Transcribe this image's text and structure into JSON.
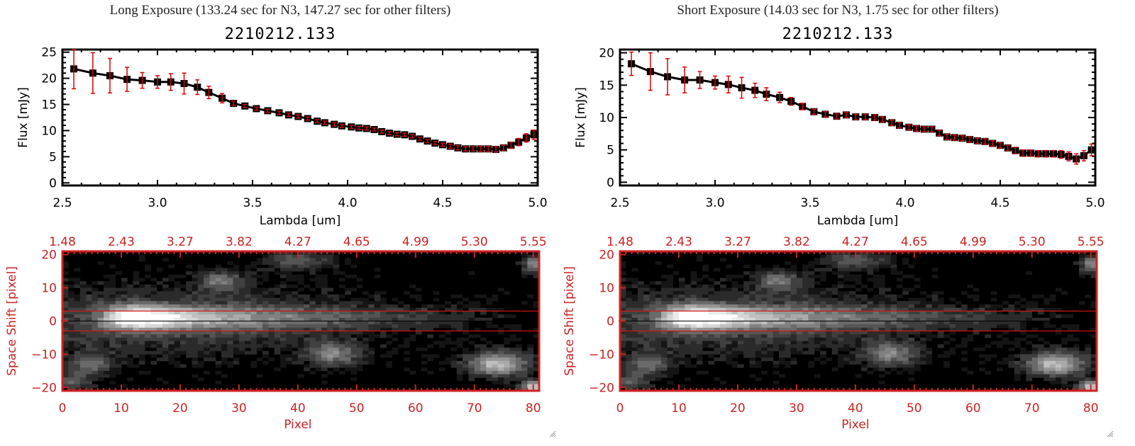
{
  "panels": [
    {
      "id": "long",
      "exposure_title": "Long Exposure (133.24 sec for N3, 147.27 sec for other filters)",
      "obs_id": "2210212.133"
    },
    {
      "id": "short",
      "exposure_title": "Short Exposure (14.03 sec for N3, 1.75 sec for other filters)",
      "obs_id": "2210212.133"
    }
  ],
  "colors": {
    "axis": "#000000",
    "marker": "#000000",
    "errorbar": "#e00000",
    "image_axis": "#cc2222",
    "aperture_line": "#dd1111",
    "center_line": "#000000"
  },
  "chart_data": [
    {
      "type": "line",
      "name": "long-exposure-spectrum",
      "title": "2210212.133",
      "xlabel": "Lambda [um]",
      "ylabel": "Flux [mJy]",
      "xlim": [
        2.5,
        5.0
      ],
      "ylim": [
        -0.5,
        25.5
      ],
      "xticks": [
        "2.5",
        "3.0",
        "3.5",
        "4.0",
        "4.5",
        "5.0"
      ],
      "xtick_values": [
        2.5,
        3.0,
        3.5,
        4.0,
        4.5,
        5.0
      ],
      "yticks": [
        "0",
        "5",
        "10",
        "15",
        "20",
        "25"
      ],
      "ytick_values": [
        0,
        5,
        10,
        15,
        20,
        25
      ],
      "grid": false,
      "series": [
        {
          "name": "Flux",
          "x": [
            2.56,
            2.66,
            2.75,
            2.84,
            2.92,
            3.0,
            3.07,
            3.14,
            3.21,
            3.27,
            3.34,
            3.4,
            3.46,
            3.52,
            3.58,
            3.64,
            3.69,
            3.74,
            3.79,
            3.84,
            3.88,
            3.93,
            3.97,
            4.02,
            4.06,
            4.1,
            4.14,
            4.18,
            4.22,
            4.26,
            4.3,
            4.34,
            4.38,
            4.42,
            4.46,
            4.5,
            4.54,
            4.58,
            4.62,
            4.66,
            4.7,
            4.74,
            4.78,
            4.82,
            4.86,
            4.9,
            4.94,
            4.98
          ],
          "y": [
            21.8,
            21.0,
            20.5,
            19.8,
            19.6,
            19.3,
            19.3,
            19.0,
            18.3,
            17.3,
            16.2,
            15.2,
            14.7,
            14.2,
            13.8,
            13.4,
            13.0,
            12.7,
            12.3,
            11.8,
            11.5,
            11.2,
            10.9,
            10.7,
            10.5,
            10.4,
            10.2,
            9.8,
            9.5,
            9.3,
            9.2,
            8.9,
            8.4,
            8.0,
            7.6,
            7.3,
            7.0,
            6.7,
            6.5,
            6.5,
            6.5,
            6.5,
            6.4,
            6.7,
            7.2,
            7.8,
            8.6,
            9.2
          ],
          "err": [
            3.8,
            3.9,
            3.3,
            2.3,
            1.5,
            1.2,
            1.6,
            2.0,
            1.4,
            1.2,
            0.9,
            0.4,
            0.3,
            0.3,
            0.3,
            0.3,
            0.3,
            0.3,
            0.3,
            0.3,
            0.3,
            0.3,
            0.3,
            0.3,
            0.3,
            0.3,
            0.3,
            0.3,
            0.3,
            0.3,
            0.3,
            0.3,
            0.3,
            0.3,
            0.3,
            0.3,
            0.4,
            0.4,
            0.4,
            0.4,
            0.5,
            0.5,
            0.5,
            0.5,
            0.6,
            0.7,
            0.8,
            0.9
          ]
        }
      ]
    },
    {
      "type": "heatmap",
      "name": "long-exposure-image",
      "xlabel": "Pixel",
      "ylabel": "Space Shift [pixel]",
      "xlim": [
        0,
        81
      ],
      "ylim": [
        -21,
        21
      ],
      "xticks": [
        "0",
        "10",
        "20",
        "30",
        "40",
        "50",
        "60",
        "70",
        "80"
      ],
      "xtick_values": [
        0,
        10,
        20,
        30,
        40,
        50,
        60,
        70,
        80
      ],
      "yticks": [
        "-20",
        "-10",
        "0",
        "10",
        "20"
      ],
      "ytick_values": [
        -20,
        -10,
        0,
        10,
        20
      ],
      "top_axis_label_values": [
        "1.48",
        "2.43",
        "3.27",
        "3.82",
        "4.27",
        "4.65",
        "4.99",
        "5.30",
        "5.55"
      ],
      "aperture_lines": [
        3,
        -3
      ],
      "center_line": 0,
      "sources": [
        {
          "x": 12,
          "y": 1,
          "peak": 1.0,
          "sx": 3.5,
          "sy": 2.5,
          "tail": true
        },
        {
          "x": 27,
          "y": 12,
          "peak": 0.42,
          "sx": 2.5,
          "sy": 2.0
        },
        {
          "x": 40,
          "y": 18,
          "peak": 0.32,
          "sx": 4.0,
          "sy": 2.0
        },
        {
          "x": 46,
          "y": -10,
          "peak": 0.48,
          "sx": 3.0,
          "sy": 2.5
        },
        {
          "x": 74,
          "y": -13,
          "peak": 0.75,
          "sx": 3.5,
          "sy": 2.5
        },
        {
          "x": 80,
          "y": -20,
          "peak": 0.85,
          "sx": 1.5,
          "sy": 1.5
        },
        {
          "x": 5,
          "y": -13,
          "peak": 0.38,
          "sx": 2.5,
          "sy": 2.0
        },
        {
          "x": 2,
          "y": -18,
          "peak": 0.35,
          "sx": 2.0,
          "sy": 2.0
        },
        {
          "x": 80,
          "y": 17,
          "peak": 0.5,
          "sx": 1.2,
          "sy": 2.0
        }
      ]
    },
    {
      "type": "line",
      "name": "short-exposure-spectrum",
      "title": "2210212.133",
      "xlabel": "Lambda [um]",
      "ylabel": "Flux [mJy]",
      "xlim": [
        2.5,
        5.0
      ],
      "ylim": [
        -0.5,
        20.5
      ],
      "xticks": [
        "2.5",
        "3.0",
        "3.5",
        "4.0",
        "4.5",
        "5.0"
      ],
      "xtick_values": [
        2.5,
        3.0,
        3.5,
        4.0,
        4.5,
        5.0
      ],
      "yticks": [
        "0",
        "5",
        "10",
        "15",
        "20"
      ],
      "ytick_values": [
        0,
        5,
        10,
        15,
        20
      ],
      "grid": false,
      "series": [
        {
          "name": "Flux",
          "x": [
            2.56,
            2.66,
            2.75,
            2.84,
            2.92,
            3.0,
            3.07,
            3.14,
            3.21,
            3.27,
            3.34,
            3.4,
            3.46,
            3.52,
            3.58,
            3.64,
            3.69,
            3.74,
            3.79,
            3.84,
            3.88,
            3.93,
            3.97,
            4.02,
            4.06,
            4.1,
            4.14,
            4.18,
            4.22,
            4.26,
            4.3,
            4.34,
            4.38,
            4.42,
            4.46,
            4.5,
            4.54,
            4.58,
            4.62,
            4.66,
            4.7,
            4.74,
            4.78,
            4.82,
            4.86,
            4.9,
            4.94,
            4.98
          ],
          "y": [
            18.3,
            17.1,
            16.3,
            15.8,
            15.8,
            15.4,
            15.1,
            14.6,
            14.2,
            13.6,
            13.1,
            12.5,
            11.7,
            10.9,
            10.5,
            10.2,
            10.4,
            10.1,
            10.1,
            10.0,
            9.7,
            9.2,
            8.8,
            8.5,
            8.3,
            8.2,
            8.2,
            7.6,
            7.0,
            6.9,
            6.8,
            6.6,
            6.4,
            6.3,
            6.0,
            5.7,
            5.3,
            4.9,
            4.5,
            4.5,
            4.4,
            4.4,
            4.4,
            4.3,
            4.0,
            3.6,
            4.1,
            5.0
          ],
          "err": [
            1.8,
            2.9,
            2.8,
            2.0,
            1.3,
            1.0,
            1.3,
            1.6,
            1.1,
            1.0,
            0.8,
            0.6,
            0.5,
            0.4,
            0.4,
            0.4,
            0.4,
            0.4,
            0.4,
            0.4,
            0.4,
            0.4,
            0.4,
            0.4,
            0.4,
            0.4,
            0.4,
            0.4,
            0.4,
            0.4,
            0.4,
            0.4,
            0.4,
            0.4,
            0.4,
            0.4,
            0.4,
            0.5,
            0.5,
            0.5,
            0.5,
            0.5,
            0.5,
            0.6,
            0.7,
            0.8,
            0.8,
            0.9
          ]
        }
      ]
    },
    {
      "type": "heatmap",
      "name": "short-exposure-image",
      "xlabel": "Pixel",
      "ylabel": "Space Shift [pixel]",
      "xlim": [
        0,
        81
      ],
      "ylim": [
        -21,
        21
      ],
      "xticks": [
        "0",
        "10",
        "20",
        "30",
        "40",
        "50",
        "60",
        "70",
        "80"
      ],
      "xtick_values": [
        0,
        10,
        20,
        30,
        40,
        50,
        60,
        70,
        80
      ],
      "yticks": [
        "-20",
        "-10",
        "0",
        "10",
        "20"
      ],
      "ytick_values": [
        -20,
        -10,
        0,
        10,
        20
      ],
      "top_axis_label_values": [
        "1.48",
        "2.43",
        "3.27",
        "3.82",
        "4.27",
        "4.65",
        "4.99",
        "5.30",
        "5.55"
      ],
      "aperture_lines": [
        3,
        -3
      ],
      "center_line": 0,
      "sources": [
        {
          "x": 12,
          "y": 1,
          "peak": 1.0,
          "sx": 3.5,
          "sy": 2.5,
          "tail": true
        },
        {
          "x": 27,
          "y": 12,
          "peak": 0.42,
          "sx": 2.5,
          "sy": 2.0
        },
        {
          "x": 40,
          "y": 18,
          "peak": 0.32,
          "sx": 4.0,
          "sy": 2.0
        },
        {
          "x": 46,
          "y": -10,
          "peak": 0.48,
          "sx": 3.0,
          "sy": 2.5
        },
        {
          "x": 74,
          "y": -13,
          "peak": 0.75,
          "sx": 3.5,
          "sy": 2.5
        },
        {
          "x": 80,
          "y": -20,
          "peak": 0.85,
          "sx": 1.5,
          "sy": 1.5
        },
        {
          "x": 5,
          "y": -13,
          "peak": 0.38,
          "sx": 2.5,
          "sy": 2.0
        },
        {
          "x": 2,
          "y": -18,
          "peak": 0.35,
          "sx": 2.0,
          "sy": 2.0
        },
        {
          "x": 80,
          "y": 17,
          "peak": 0.5,
          "sx": 1.2,
          "sy": 2.0
        }
      ]
    }
  ]
}
